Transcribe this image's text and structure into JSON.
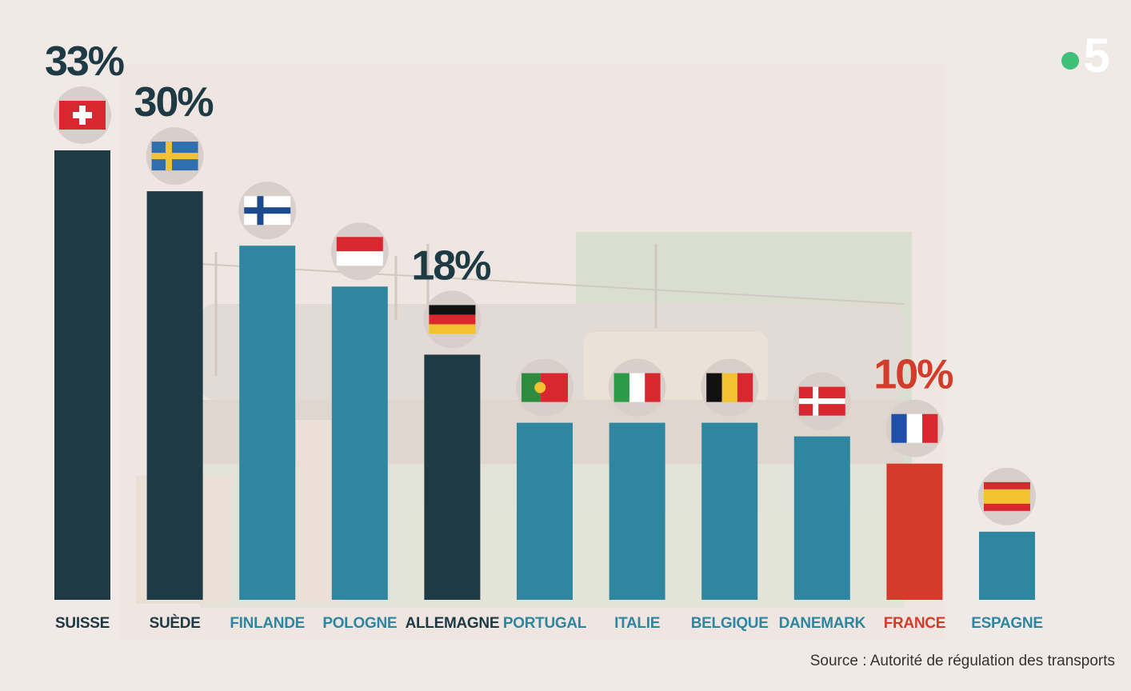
{
  "logo": {
    "text": "5",
    "dot_color": "#3fbf78"
  },
  "source": "Source : Autorité de régulation des transports",
  "colors": {
    "dark": "#1e3a45",
    "teal": "#2e86a0",
    "red": "#d53b2a"
  },
  "chart_data": {
    "type": "bar",
    "title": "",
    "xlabel": "",
    "ylabel": "",
    "categories": [
      "SUISSE",
      "SUÈDE",
      "FINLANDE",
      "POLOGNE",
      "ALLEMAGNE",
      "PORTUGAL",
      "ITALIE",
      "BELGIQUE",
      "DANEMARK",
      "FRANCE",
      "ESPAGNE"
    ],
    "values": [
      33,
      30,
      26,
      23,
      18,
      13,
      13,
      13,
      12,
      10,
      5
    ],
    "data_labels": [
      "33%",
      "30%",
      "",
      "",
      "18%",
      "",
      "",
      "",
      "",
      "10%",
      ""
    ],
    "bar_colors": [
      "dark",
      "dark",
      "teal",
      "teal",
      "dark",
      "teal",
      "teal",
      "teal",
      "teal",
      "red",
      "teal"
    ],
    "flags": [
      "switzerland-flag-icon",
      "sweden-flag-icon",
      "finland-flag-icon",
      "poland-flag-icon",
      "germany-flag-icon",
      "portugal-flag-icon",
      "italy-flag-icon",
      "belgium-flag-icon",
      "denmark-flag-icon",
      "france-flag-icon",
      "spain-flag-icon"
    ],
    "ylim": [
      0,
      33
    ],
    "grid": false,
    "legend": "none"
  }
}
